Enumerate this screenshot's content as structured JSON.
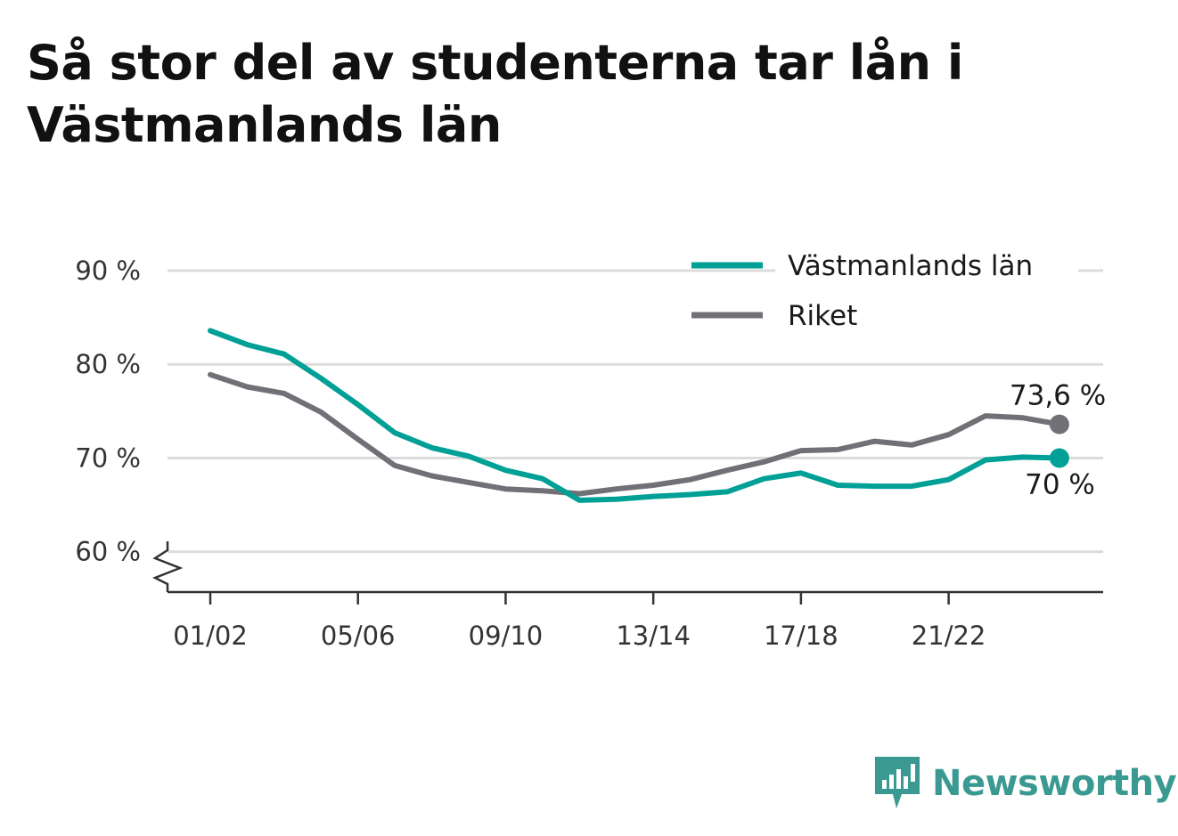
{
  "title": "Så stor del av studenterna tar lån i Västmanlands län",
  "brand": {
    "name": "Newsworthy",
    "icon": "newsworthy-logo-icon",
    "color": "#3a9a91"
  },
  "chart_data": {
    "type": "line",
    "title": "Så stor del av studenterna tar lån i Västmanlands län",
    "xlabel": "",
    "ylabel": "",
    "x": [
      "01/02",
      "02/03",
      "03/04",
      "04/05",
      "05/06",
      "06/07",
      "07/08",
      "08/09",
      "09/10",
      "10/11",
      "11/12",
      "12/13",
      "13/14",
      "14/15",
      "15/16",
      "16/17",
      "17/18",
      "18/19",
      "19/20",
      "20/21",
      "21/22",
      "22/23",
      "23/24",
      "24/25"
    ],
    "x_tick_labels": [
      "01/02",
      "05/06",
      "09/10",
      "13/14",
      "17/18",
      "21/22"
    ],
    "ylim": [
      55.7,
      90
    ],
    "y_ticks": [
      60,
      70,
      80,
      90
    ],
    "y_tick_labels": [
      "60 %",
      "70 %",
      "80 %",
      "90 %"
    ],
    "y_axis_break": true,
    "grid": true,
    "legend_position": "top-right",
    "series": [
      {
        "name": "Västmanlands län",
        "color": "#00a096",
        "values": [
          83.6,
          82.1,
          81.1,
          78.5,
          75.7,
          72.7,
          71.1,
          70.2,
          68.7,
          67.8,
          65.5,
          65.6,
          65.9,
          66.1,
          66.4,
          67.8,
          68.4,
          67.1,
          67.0,
          67.0,
          67.7,
          69.8,
          70.1,
          70.0
        ],
        "end_label": "70 %"
      },
      {
        "name": "Riket",
        "color": "#707077",
        "values": [
          78.9,
          77.6,
          76.9,
          74.9,
          72.0,
          69.2,
          68.1,
          67.4,
          66.7,
          66.5,
          66.2,
          66.7,
          67.1,
          67.7,
          68.7,
          69.6,
          70.8,
          70.9,
          71.8,
          71.4,
          72.5,
          74.5,
          74.3,
          73.6
        ],
        "end_label": "73,6 %"
      }
    ]
  }
}
